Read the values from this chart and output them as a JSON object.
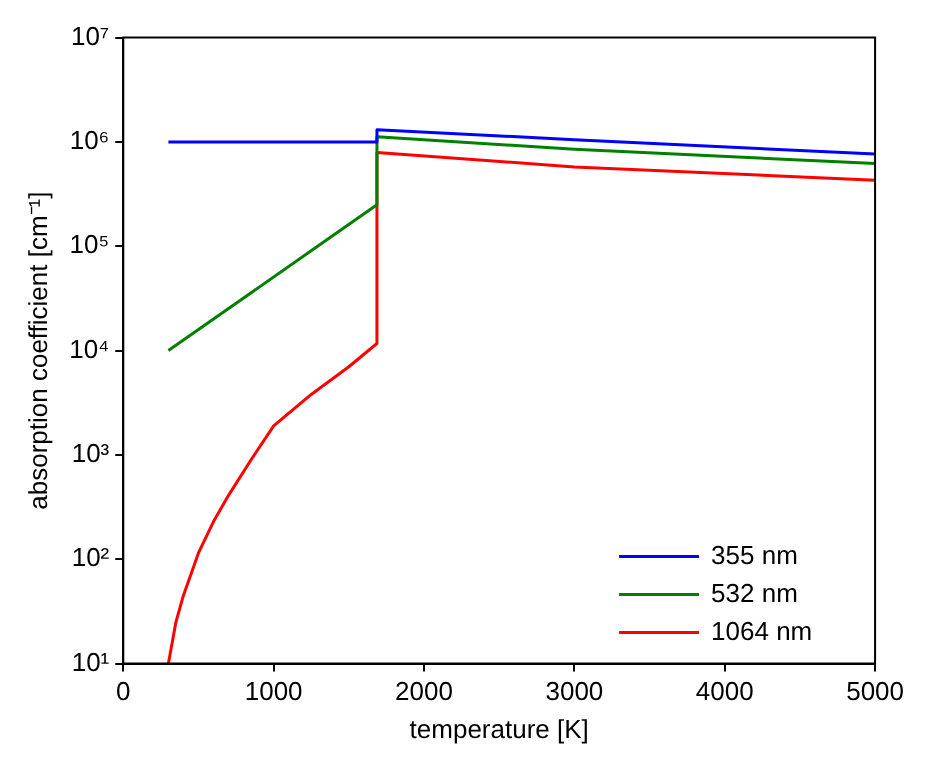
{
  "chart_data": {
    "type": "line",
    "xlabel": "temperature [K]",
    "ylabel": "absorption coefficient [cm⁻¹]",
    "xlim": [
      0,
      5000
    ],
    "xticks": [
      0,
      1000,
      2000,
      3000,
      4000,
      5000
    ],
    "ylim": [
      10,
      10000000
    ],
    "yticks": [
      {
        "value": 10,
        "label": "10¹"
      },
      {
        "value": 100,
        "label": "10²"
      },
      {
        "value": 1000,
        "label": "10³"
      },
      {
        "value": 10000,
        "label": "10⁴"
      },
      {
        "value": 100000,
        "label": "10⁵"
      },
      {
        "value": 1000000,
        "label": "10⁶"
      },
      {
        "value": 10000000,
        "label": "10⁷"
      }
    ],
    "log": "y",
    "grid": false,
    "legend": "bottom right",
    "line_style": "solid",
    "marker": "none",
    "series": [
      {
        "name": "355 nm",
        "color": "#0000ff",
        "x": [
          300,
          1687,
          1687,
          3000,
          5000
        ],
        "values": [
          1000000,
          1000000,
          1310000,
          1050000,
          765000
        ]
      },
      {
        "name": "532 nm",
        "color": "#008000",
        "x": [
          300,
          1687,
          1687,
          3000,
          5000
        ],
        "values": [
          10000,
          250000,
          1120000,
          850000,
          620000
        ]
      },
      {
        "name": "1064 nm",
        "color": "#ff0000",
        "x": [
          300,
          350,
          400,
          500,
          600,
          700,
          850,
          1000,
          1250,
          1500,
          1687,
          1687,
          3000,
          5000
        ],
        "values": [
          10,
          25,
          45,
          115,
          230,
          410,
          900,
          1900,
          3800,
          7000,
          11700,
          790000,
          576000,
          430000
        ]
      }
    ]
  }
}
